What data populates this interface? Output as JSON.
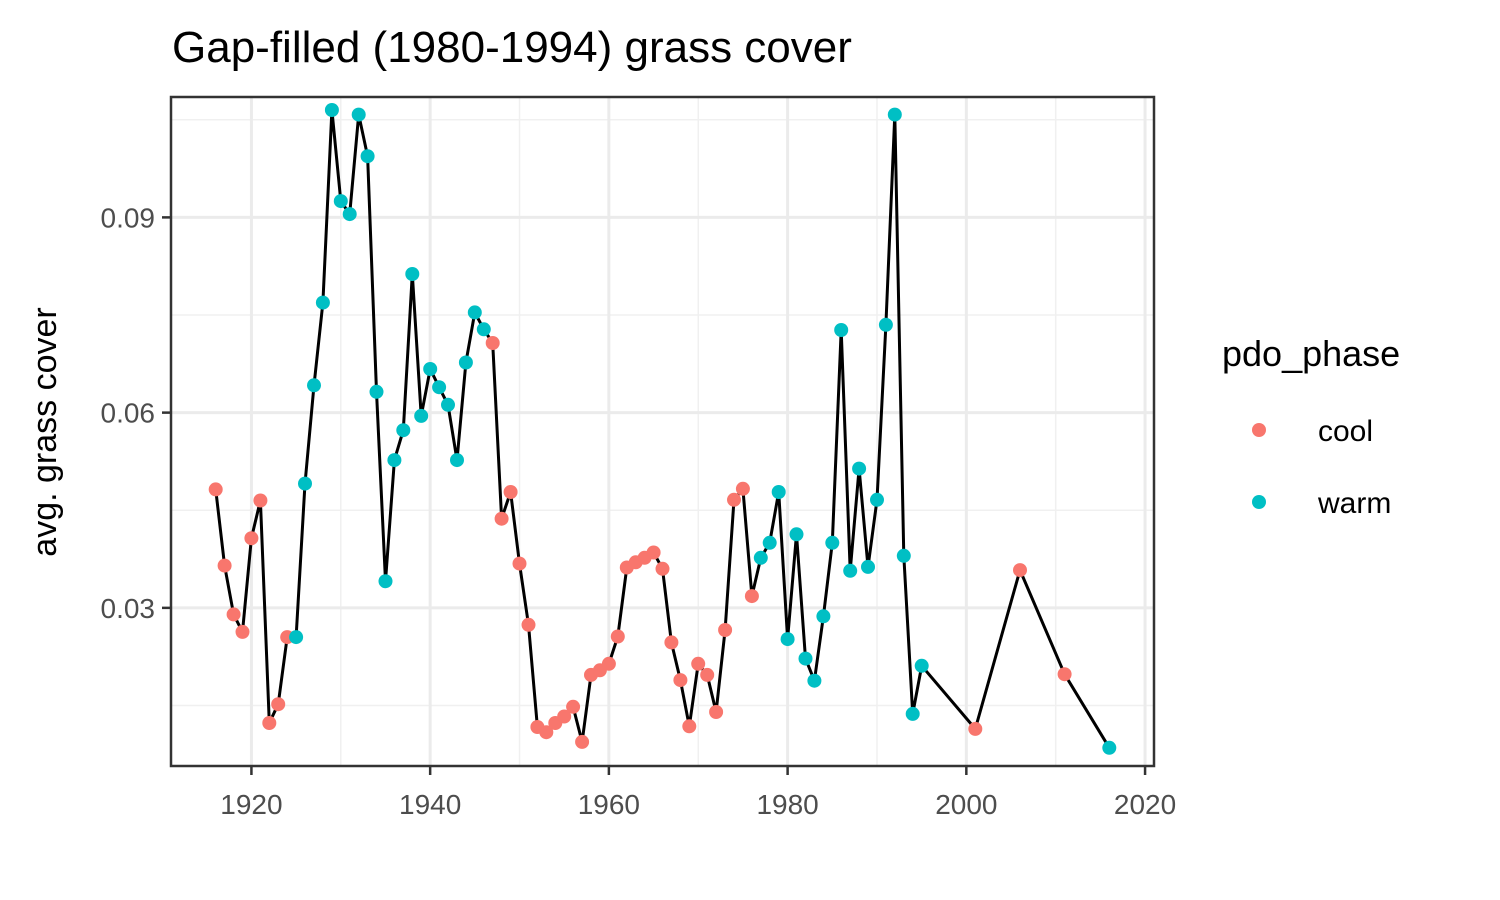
{
  "chart_data": {
    "type": "line",
    "title": "Gap-filled (1980-1994) grass cover",
    "xlabel": "",
    "ylabel": "avg. grass cover",
    "xlim": [
      1911,
      2021
    ],
    "ylim": [
      0.0057,
      0.1085
    ],
    "x_ticks": [
      1920,
      1940,
      1960,
      1980,
      2000,
      2020
    ],
    "x_tick_labels": [
      "1920",
      "1940",
      "1960",
      "1980",
      "2000",
      "2020"
    ],
    "y_ticks": [
      0.03,
      0.06,
      0.09
    ],
    "y_tick_labels": [
      "0.03",
      "0.06",
      "0.09"
    ],
    "grid": true,
    "line_color": "#000000",
    "legend": {
      "title": "pdo_phase",
      "position": "right",
      "entries": [
        {
          "label": "cool",
          "color": "#F8766D"
        },
        {
          "label": "warm",
          "color": "#00BFC4"
        }
      ]
    },
    "points": [
      {
        "x": 1916,
        "y": 0.0482,
        "phase": "cool"
      },
      {
        "x": 1917,
        "y": 0.0365,
        "phase": "cool"
      },
      {
        "x": 1918,
        "y": 0.029,
        "phase": "cool"
      },
      {
        "x": 1919,
        "y": 0.0263,
        "phase": "cool"
      },
      {
        "x": 1920,
        "y": 0.0407,
        "phase": "cool"
      },
      {
        "x": 1921,
        "y": 0.0465,
        "phase": "cool"
      },
      {
        "x": 1922,
        "y": 0.0123,
        "phase": "cool"
      },
      {
        "x": 1923,
        "y": 0.0152,
        "phase": "cool"
      },
      {
        "x": 1924,
        "y": 0.0255,
        "phase": "cool"
      },
      {
        "x": 1925,
        "y": 0.0255,
        "phase": "warm"
      },
      {
        "x": 1926,
        "y": 0.0491,
        "phase": "warm"
      },
      {
        "x": 1927,
        "y": 0.0642,
        "phase": "warm"
      },
      {
        "x": 1928,
        "y": 0.0769,
        "phase": "warm"
      },
      {
        "x": 1929,
        "y": 0.1065,
        "phase": "warm"
      },
      {
        "x": 1930,
        "y": 0.0925,
        "phase": "warm"
      },
      {
        "x": 1931,
        "y": 0.0905,
        "phase": "warm"
      },
      {
        "x": 1932,
        "y": 0.1058,
        "phase": "warm"
      },
      {
        "x": 1933,
        "y": 0.0994,
        "phase": "warm"
      },
      {
        "x": 1934,
        "y": 0.0632,
        "phase": "warm"
      },
      {
        "x": 1935,
        "y": 0.0341,
        "phase": "warm"
      },
      {
        "x": 1936,
        "y": 0.0527,
        "phase": "warm"
      },
      {
        "x": 1937,
        "y": 0.0573,
        "phase": "warm"
      },
      {
        "x": 1938,
        "y": 0.0813,
        "phase": "warm"
      },
      {
        "x": 1939,
        "y": 0.0595,
        "phase": "warm"
      },
      {
        "x": 1940,
        "y": 0.0667,
        "phase": "warm"
      },
      {
        "x": 1941,
        "y": 0.0639,
        "phase": "warm"
      },
      {
        "x": 1942,
        "y": 0.0612,
        "phase": "warm"
      },
      {
        "x": 1943,
        "y": 0.0527,
        "phase": "warm"
      },
      {
        "x": 1944,
        "y": 0.0677,
        "phase": "warm"
      },
      {
        "x": 1945,
        "y": 0.0754,
        "phase": "warm"
      },
      {
        "x": 1946,
        "y": 0.0728,
        "phase": "warm"
      },
      {
        "x": 1947,
        "y": 0.0707,
        "phase": "cool"
      },
      {
        "x": 1948,
        "y": 0.0437,
        "phase": "cool"
      },
      {
        "x": 1949,
        "y": 0.0478,
        "phase": "cool"
      },
      {
        "x": 1950,
        "y": 0.0368,
        "phase": "cool"
      },
      {
        "x": 1951,
        "y": 0.0274,
        "phase": "cool"
      },
      {
        "x": 1952,
        "y": 0.0117,
        "phase": "cool"
      },
      {
        "x": 1953,
        "y": 0.0109,
        "phase": "cool"
      },
      {
        "x": 1954,
        "y": 0.0123,
        "phase": "cool"
      },
      {
        "x": 1955,
        "y": 0.0133,
        "phase": "cool"
      },
      {
        "x": 1956,
        "y": 0.0148,
        "phase": "cool"
      },
      {
        "x": 1957,
        "y": 0.0094,
        "phase": "cool"
      },
      {
        "x": 1958,
        "y": 0.0197,
        "phase": "cool"
      },
      {
        "x": 1959,
        "y": 0.0204,
        "phase": "cool"
      },
      {
        "x": 1960,
        "y": 0.0214,
        "phase": "cool"
      },
      {
        "x": 1961,
        "y": 0.0256,
        "phase": "cool"
      },
      {
        "x": 1962,
        "y": 0.0362,
        "phase": "cool"
      },
      {
        "x": 1963,
        "y": 0.037,
        "phase": "cool"
      },
      {
        "x": 1964,
        "y": 0.0377,
        "phase": "cool"
      },
      {
        "x": 1965,
        "y": 0.0385,
        "phase": "cool"
      },
      {
        "x": 1966,
        "y": 0.036,
        "phase": "cool"
      },
      {
        "x": 1967,
        "y": 0.0247,
        "phase": "cool"
      },
      {
        "x": 1968,
        "y": 0.0189,
        "phase": "cool"
      },
      {
        "x": 1969,
        "y": 0.0118,
        "phase": "cool"
      },
      {
        "x": 1970,
        "y": 0.0214,
        "phase": "cool"
      },
      {
        "x": 1971,
        "y": 0.0197,
        "phase": "cool"
      },
      {
        "x": 1972,
        "y": 0.014,
        "phase": "cool"
      },
      {
        "x": 1973,
        "y": 0.0266,
        "phase": "cool"
      },
      {
        "x": 1974,
        "y": 0.0466,
        "phase": "cool"
      },
      {
        "x": 1975,
        "y": 0.0483,
        "phase": "cool"
      },
      {
        "x": 1976,
        "y": 0.0318,
        "phase": "cool"
      },
      {
        "x": 1977,
        "y": 0.0377,
        "phase": "warm"
      },
      {
        "x": 1978,
        "y": 0.04,
        "phase": "warm"
      },
      {
        "x": 1979,
        "y": 0.0478,
        "phase": "warm"
      },
      {
        "x": 1980,
        "y": 0.0252,
        "phase": "warm"
      },
      {
        "x": 1981,
        "y": 0.0413,
        "phase": "warm"
      },
      {
        "x": 1982,
        "y": 0.0222,
        "phase": "warm"
      },
      {
        "x": 1983,
        "y": 0.0188,
        "phase": "warm"
      },
      {
        "x": 1984,
        "y": 0.0287,
        "phase": "warm"
      },
      {
        "x": 1985,
        "y": 0.04,
        "phase": "warm"
      },
      {
        "x": 1986,
        "y": 0.0727,
        "phase": "warm"
      },
      {
        "x": 1987,
        "y": 0.0357,
        "phase": "warm"
      },
      {
        "x": 1988,
        "y": 0.0514,
        "phase": "warm"
      },
      {
        "x": 1989,
        "y": 0.0363,
        "phase": "warm"
      },
      {
        "x": 1990,
        "y": 0.0466,
        "phase": "warm"
      },
      {
        "x": 1991,
        "y": 0.0735,
        "phase": "warm"
      },
      {
        "x": 1992,
        "y": 0.1058,
        "phase": "warm"
      },
      {
        "x": 1993,
        "y": 0.038,
        "phase": "warm"
      },
      {
        "x": 1994,
        "y": 0.0137,
        "phase": "warm"
      },
      {
        "x": 1995,
        "y": 0.0211,
        "phase": "warm"
      },
      {
        "x": 2001,
        "y": 0.0114,
        "phase": "cool"
      },
      {
        "x": 2006,
        "y": 0.0358,
        "phase": "cool"
      },
      {
        "x": 2011,
        "y": 0.0198,
        "phase": "cool"
      },
      {
        "x": 2016,
        "y": 0.0085,
        "phase": "warm"
      }
    ]
  }
}
